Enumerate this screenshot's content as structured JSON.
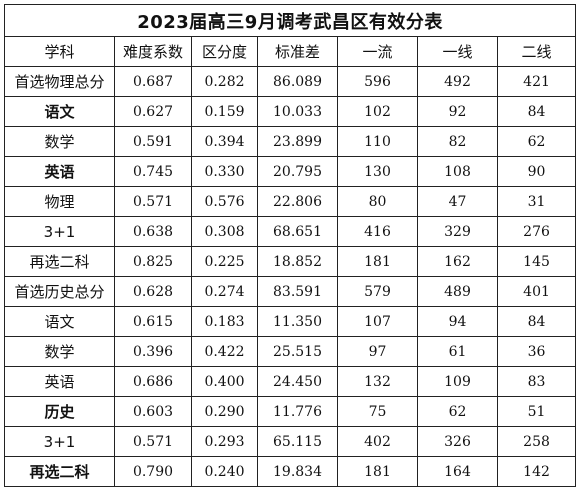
{
  "title": "2023届高三9月调考武昌区有效分表",
  "headers": [
    "学科",
    "难度系数",
    "区分度",
    "标准差",
    "一流",
    "一线",
    "二线"
  ],
  "rows": [
    {
      "subject": "首选物理总分",
      "bold": false,
      "values": [
        "0.687",
        "0.282",
        "86.089",
        "596",
        "492",
        "421"
      ]
    },
    {
      "subject": "语文",
      "bold": true,
      "values": [
        "0.627",
        "0.159",
        "10.033",
        "102",
        "92",
        "84"
      ]
    },
    {
      "subject": "数学",
      "bold": false,
      "values": [
        "0.591",
        "0.394",
        "23.899",
        "110",
        "82",
        "62"
      ]
    },
    {
      "subject": "英语",
      "bold": true,
      "values": [
        "0.745",
        "0.330",
        "20.795",
        "130",
        "108",
        "90"
      ]
    },
    {
      "subject": "物理",
      "bold": false,
      "values": [
        "0.571",
        "0.576",
        "22.806",
        "80",
        "47",
        "31"
      ]
    },
    {
      "subject": "3+1",
      "bold": false,
      "values": [
        "0.638",
        "0.308",
        "68.651",
        "416",
        "329",
        "276"
      ]
    },
    {
      "subject": "再选二科",
      "bold": false,
      "values": [
        "0.825",
        "0.225",
        "18.852",
        "181",
        "162",
        "145"
      ]
    },
    {
      "subject": "首选历史总分",
      "bold": false,
      "values": [
        "0.628",
        "0.274",
        "83.591",
        "579",
        "489",
        "401"
      ]
    },
    {
      "subject": "语文",
      "bold": false,
      "values": [
        "0.615",
        "0.183",
        "11.350",
        "107",
        "94",
        "84"
      ]
    },
    {
      "subject": "数学",
      "bold": false,
      "values": [
        "0.396",
        "0.422",
        "25.515",
        "97",
        "61",
        "36"
      ]
    },
    {
      "subject": "英语",
      "bold": false,
      "values": [
        "0.686",
        "0.400",
        "24.450",
        "132",
        "109",
        "83"
      ]
    },
    {
      "subject": "历史",
      "bold": true,
      "values": [
        "0.603",
        "0.290",
        "11.776",
        "75",
        "62",
        "51"
      ]
    },
    {
      "subject": "3+1",
      "bold": false,
      "values": [
        "0.571",
        "0.293",
        "65.115",
        "402",
        "326",
        "258"
      ]
    },
    {
      "subject": "再选二科",
      "bold": true,
      "values": [
        "0.790",
        "0.240",
        "19.834",
        "181",
        "164",
        "142"
      ]
    }
  ]
}
